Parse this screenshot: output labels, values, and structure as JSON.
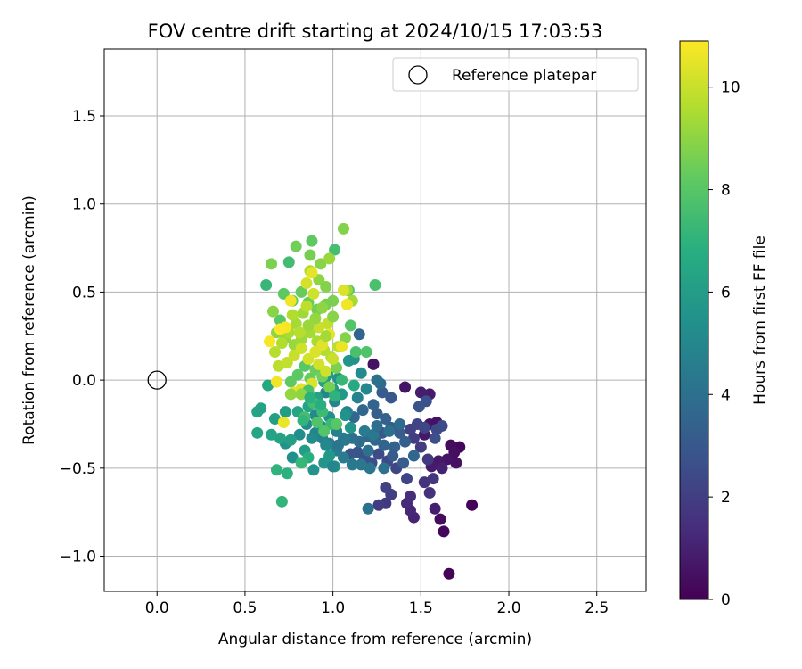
{
  "chart_data": {
    "type": "scatter",
    "title": "FOV centre drift starting at 2024/10/15 17:03:53",
    "xlabel": "Angular distance from reference (arcmin)",
    "ylabel": "Rotation from reference (arcmin)",
    "xlim": [
      -0.3,
      2.78
    ],
    "ylim": [
      -1.2,
      1.88
    ],
    "xticks": [
      "0.0",
      "0.5",
      "1.0",
      "1.5",
      "2.0",
      "2.5"
    ],
    "yticks": [
      "−1.0",
      "−0.5",
      "0.0",
      "0.5",
      "1.0",
      "1.5"
    ],
    "grid": true,
    "legend": {
      "position": "top-right",
      "entries": [
        "Reference platepar"
      ]
    },
    "reference_point": {
      "x": 0.0,
      "y": 0.0,
      "name": "Reference platepar"
    },
    "colorbar": {
      "label": "Hours from first FF file",
      "range": [
        0,
        10.9
      ],
      "ticks": [
        "0",
        "2",
        "4",
        "6",
        "8",
        "10"
      ],
      "colormap": "viridis"
    },
    "points": [
      {
        "x": 1.66,
        "y": -1.1,
        "c": 0.1
      },
      {
        "x": 1.79,
        "y": -0.71,
        "c": 0.1
      },
      {
        "x": 1.63,
        "y": -0.86,
        "c": 0.2
      },
      {
        "x": 1.61,
        "y": -0.79,
        "c": 0.3
      },
      {
        "x": 1.72,
        "y": -0.38,
        "c": 0.2
      },
      {
        "x": 1.67,
        "y": -0.37,
        "c": 0.3
      },
      {
        "x": 1.69,
        "y": -0.41,
        "c": 0.4
      },
      {
        "x": 1.7,
        "y": -0.47,
        "c": 0.5
      },
      {
        "x": 1.65,
        "y": -0.45,
        "c": 0.6
      },
      {
        "x": 1.6,
        "y": -0.46,
        "c": 0.7
      },
      {
        "x": 1.56,
        "y": -0.49,
        "c": 0.8
      },
      {
        "x": 1.58,
        "y": -0.73,
        "c": 0.9
      },
      {
        "x": 1.62,
        "y": -0.5,
        "c": 1.0
      },
      {
        "x": 1.55,
        "y": -0.08,
        "c": 0.8
      },
      {
        "x": 1.5,
        "y": -0.07,
        "c": 0.9
      },
      {
        "x": 1.52,
        "y": -0.31,
        "c": 0.7
      },
      {
        "x": 1.55,
        "y": -0.25,
        "c": 0.6
      },
      {
        "x": 1.59,
        "y": -0.24,
        "c": 0.5
      },
      {
        "x": 1.41,
        "y": -0.04,
        "c": 0.6
      },
      {
        "x": 1.23,
        "y": 0.09,
        "c": 0.5
      },
      {
        "x": 1.46,
        "y": -0.78,
        "c": 1.1
      },
      {
        "x": 1.44,
        "y": -0.74,
        "c": 1.2
      },
      {
        "x": 1.42,
        "y": -0.7,
        "c": 1.3
      },
      {
        "x": 1.44,
        "y": -0.66,
        "c": 1.4
      },
      {
        "x": 1.55,
        "y": -0.64,
        "c": 1.5
      },
      {
        "x": 1.52,
        "y": -0.58,
        "c": 1.6
      },
      {
        "x": 1.57,
        "y": -0.56,
        "c": 1.7
      },
      {
        "x": 1.54,
        "y": -0.45,
        "c": 1.8
      },
      {
        "x": 1.5,
        "y": -0.38,
        "c": 1.9
      },
      {
        "x": 1.46,
        "y": -0.33,
        "c": 2.0
      },
      {
        "x": 1.44,
        "y": -0.28,
        "c": 2.1
      },
      {
        "x": 1.48,
        "y": -0.25,
        "c": 2.2
      },
      {
        "x": 1.52,
        "y": -0.27,
        "c": 2.3
      },
      {
        "x": 1.59,
        "y": -0.28,
        "c": 2.4
      },
      {
        "x": 1.62,
        "y": -0.26,
        "c": 2.5
      },
      {
        "x": 1.58,
        "y": -0.33,
        "c": 2.6
      },
      {
        "x": 1.53,
        "y": -0.12,
        "c": 2.7
      },
      {
        "x": 1.49,
        "y": -0.15,
        "c": 2.8
      },
      {
        "x": 1.3,
        "y": -0.7,
        "c": 1.8
      },
      {
        "x": 1.26,
        "y": -0.71,
        "c": 1.9
      },
      {
        "x": 1.33,
        "y": -0.65,
        "c": 2.0
      },
      {
        "x": 1.3,
        "y": -0.61,
        "c": 2.1
      },
      {
        "x": 1.42,
        "y": -0.56,
        "c": 2.2
      },
      {
        "x": 1.36,
        "y": -0.5,
        "c": 2.3
      },
      {
        "x": 1.31,
        "y": -0.46,
        "c": 2.4
      },
      {
        "x": 1.26,
        "y": -0.42,
        "c": 2.5
      },
      {
        "x": 1.22,
        "y": -0.47,
        "c": 2.6
      },
      {
        "x": 1.18,
        "y": -0.44,
        "c": 2.7
      },
      {
        "x": 1.14,
        "y": -0.41,
        "c": 2.8
      },
      {
        "x": 1.1,
        "y": -0.42,
        "c": 2.9
      },
      {
        "x": 1.28,
        "y": -0.3,
        "c": 3.0
      },
      {
        "x": 1.33,
        "y": -0.27,
        "c": 3.1
      },
      {
        "x": 1.38,
        "y": -0.3,
        "c": 3.2
      },
      {
        "x": 1.41,
        "y": -0.35,
        "c": 3.3
      },
      {
        "x": 1.35,
        "y": -0.38,
        "c": 3.4
      },
      {
        "x": 1.29,
        "y": -0.37,
        "c": 3.5
      },
      {
        "x": 1.24,
        "y": -0.34,
        "c": 3.6
      },
      {
        "x": 1.2,
        "y": -0.32,
        "c": 3.7
      },
      {
        "x": 1.15,
        "y": -0.35,
        "c": 3.8
      },
      {
        "x": 1.11,
        "y": -0.33,
        "c": 3.9
      },
      {
        "x": 1.25,
        "y": -0.19,
        "c": 3.3
      },
      {
        "x": 1.3,
        "y": -0.22,
        "c": 3.4
      },
      {
        "x": 1.33,
        "y": -0.1,
        "c": 3.0
      },
      {
        "x": 1.28,
        "y": -0.07,
        "c": 3.1
      },
      {
        "x": 1.23,
        "y": -0.14,
        "c": 3.5
      },
      {
        "x": 1.17,
        "y": -0.17,
        "c": 3.6
      },
      {
        "x": 1.12,
        "y": -0.21,
        "c": 3.7
      },
      {
        "x": 1.27,
        "y": -0.02,
        "c": 3.8
      },
      {
        "x": 1.15,
        "y": 0.26,
        "c": 3.5
      },
      {
        "x": 1.2,
        "y": -0.73,
        "c": 4.0
      },
      {
        "x": 1.29,
        "y": -0.5,
        "c": 4.1
      },
      {
        "x": 1.21,
        "y": -0.5,
        "c": 4.2
      },
      {
        "x": 1.16,
        "y": -0.48,
        "c": 4.3
      },
      {
        "x": 1.11,
        "y": -0.48,
        "c": 4.4
      },
      {
        "x": 1.06,
        "y": -0.44,
        "c": 4.5
      },
      {
        "x": 1.02,
        "y": -0.4,
        "c": 4.6
      },
      {
        "x": 0.98,
        "y": -0.36,
        "c": 4.7
      },
      {
        "x": 0.94,
        "y": -0.33,
        "c": 4.8
      },
      {
        "x": 0.9,
        "y": -0.3,
        "c": 4.9
      },
      {
        "x": 1.06,
        "y": -0.33,
        "c": 4.6
      },
      {
        "x": 1.02,
        "y": -0.29,
        "c": 4.7
      },
      {
        "x": 1.08,
        "y": -0.18,
        "c": 4.8
      },
      {
        "x": 1.01,
        "y": -0.12,
        "c": 4.9
      },
      {
        "x": 0.96,
        "y": -0.07,
        "c": 5.0
      },
      {
        "x": 0.9,
        "y": -0.2,
        "c": 5.1
      },
      {
        "x": 0.85,
        "y": -0.25,
        "c": 5.2
      },
      {
        "x": 0.81,
        "y": -0.31,
        "c": 5.3
      },
      {
        "x": 0.77,
        "y": -0.44,
        "c": 5.4
      },
      {
        "x": 0.73,
        "y": -0.36,
        "c": 5.5
      },
      {
        "x": 0.89,
        "y": -0.51,
        "c": 5.6
      },
      {
        "x": 0.95,
        "y": -0.47,
        "c": 5.7
      },
      {
        "x": 0.98,
        "y": -0.43,
        "c": 5.8
      },
      {
        "x": 1.01,
        "y": -0.49,
        "c": 5.9
      },
      {
        "x": 0.84,
        "y": -0.4,
        "c": 6.0
      },
      {
        "x": 0.76,
        "y": -0.34,
        "c": 6.1
      },
      {
        "x": 0.7,
        "y": -0.33,
        "c": 6.2
      },
      {
        "x": 0.65,
        "y": -0.31,
        "c": 6.3
      },
      {
        "x": 0.57,
        "y": -0.3,
        "c": 6.4
      },
      {
        "x": 0.57,
        "y": -0.18,
        "c": 6.3
      },
      {
        "x": 0.59,
        "y": -0.16,
        "c": 6.2
      },
      {
        "x": 0.67,
        "y": -0.22,
        "c": 6.1
      },
      {
        "x": 0.73,
        "y": -0.18,
        "c": 6.0
      },
      {
        "x": 0.63,
        "y": -0.03,
        "c": 6.5
      },
      {
        "x": 0.8,
        "y": -0.18,
        "c": 6.4
      },
      {
        "x": 0.86,
        "y": -0.15,
        "c": 6.3
      },
      {
        "x": 0.91,
        "y": -0.1,
        "c": 6.2
      },
      {
        "x": 0.95,
        "y": -0.01,
        "c": 6.1
      },
      {
        "x": 0.97,
        "y": 0.03,
        "c": 6.0
      },
      {
        "x": 1.0,
        "y": -0.05,
        "c": 5.9
      },
      {
        "x": 1.05,
        "y": -0.08,
        "c": 5.8
      },
      {
        "x": 1.09,
        "y": 0.11,
        "c": 5.7
      },
      {
        "x": 1.12,
        "y": 0.12,
        "c": 5.6
      },
      {
        "x": 1.03,
        "y": 0.01,
        "c": 5.5
      },
      {
        "x": 0.98,
        "y": -0.21,
        "c": 5.4
      },
      {
        "x": 0.93,
        "y": -0.26,
        "c": 5.3
      },
      {
        "x": 0.88,
        "y": -0.33,
        "c": 5.2
      },
      {
        "x": 0.96,
        "y": -0.37,
        "c": 5.1
      },
      {
        "x": 1.0,
        "y": -0.49,
        "c": 5.0
      },
      {
        "x": 0.86,
        "y": -0.44,
        "c": 6.8
      },
      {
        "x": 0.74,
        "y": -0.53,
        "c": 6.9
      },
      {
        "x": 0.68,
        "y": -0.51,
        "c": 7.0
      },
      {
        "x": 0.71,
        "y": -0.69,
        "c": 7.1
      },
      {
        "x": 0.82,
        "y": -0.47,
        "c": 7.2
      },
      {
        "x": 0.99,
        "y": -0.25,
        "c": 7.3
      },
      {
        "x": 0.94,
        "y": -0.18,
        "c": 7.4
      },
      {
        "x": 0.89,
        "y": -0.13,
        "c": 7.5
      },
      {
        "x": 0.84,
        "y": -0.21,
        "c": 7.6
      },
      {
        "x": 1.13,
        "y": 0.16,
        "c": 7.7
      },
      {
        "x": 1.19,
        "y": 0.16,
        "c": 7.8
      },
      {
        "x": 1.1,
        "y": 0.31,
        "c": 7.9
      },
      {
        "x": 1.24,
        "y": 0.54,
        "c": 7.7
      },
      {
        "x": 1.09,
        "y": 0.51,
        "c": 7.8
      },
      {
        "x": 1.01,
        "y": 0.74,
        "c": 7.6
      },
      {
        "x": 0.62,
        "y": 0.54,
        "c": 7.2
      },
      {
        "x": 0.75,
        "y": 0.67,
        "c": 7.5
      },
      {
        "x": 0.88,
        "y": 0.79,
        "c": 8.2
      },
      {
        "x": 0.79,
        "y": 0.76,
        "c": 8.5
      },
      {
        "x": 0.65,
        "y": 0.66,
        "c": 8.7
      },
      {
        "x": 1.06,
        "y": 0.86,
        "c": 8.8
      },
      {
        "x": 0.87,
        "y": 0.71,
        "c": 8.6
      },
      {
        "x": 0.93,
        "y": 0.66,
        "c": 8.9
      },
      {
        "x": 0.98,
        "y": 0.69,
        "c": 9.2
      },
      {
        "x": 0.87,
        "y": 0.62,
        "c": 9.5
      },
      {
        "x": 0.92,
        "y": 0.57,
        "c": 9.0
      },
      {
        "x": 0.96,
        "y": 0.53,
        "c": 8.8
      },
      {
        "x": 1.08,
        "y": 0.51,
        "c": 9.3
      },
      {
        "x": 1.11,
        "y": 0.45,
        "c": 9.4
      },
      {
        "x": 1.0,
        "y": 0.45,
        "c": 8.7
      },
      {
        "x": 0.96,
        "y": 0.43,
        "c": 8.6
      },
      {
        "x": 0.91,
        "y": 0.4,
        "c": 8.5
      },
      {
        "x": 0.86,
        "y": 0.44,
        "c": 8.4
      },
      {
        "x": 0.82,
        "y": 0.5,
        "c": 8.3
      },
      {
        "x": 0.77,
        "y": 0.45,
        "c": 8.2
      },
      {
        "x": 0.72,
        "y": 0.49,
        "c": 8.1
      },
      {
        "x": 0.7,
        "y": 0.34,
        "c": 8.0
      },
      {
        "x": 0.66,
        "y": 0.39,
        "c": 8.9
      },
      {
        "x": 0.68,
        "y": 0.27,
        "c": 9.0
      },
      {
        "x": 0.73,
        "y": 0.24,
        "c": 9.1
      },
      {
        "x": 0.78,
        "y": 0.2,
        "c": 9.2
      },
      {
        "x": 0.82,
        "y": 0.23,
        "c": 9.3
      },
      {
        "x": 0.87,
        "y": 0.27,
        "c": 9.4
      },
      {
        "x": 0.91,
        "y": 0.22,
        "c": 9.5
      },
      {
        "x": 0.95,
        "y": 0.17,
        "c": 9.6
      },
      {
        "x": 0.99,
        "y": 0.13,
        "c": 9.7
      },
      {
        "x": 1.03,
        "y": 0.19,
        "c": 9.8
      },
      {
        "x": 0.97,
        "y": 0.32,
        "c": 9.9
      },
      {
        "x": 0.92,
        "y": 0.3,
        "c": 10.0
      },
      {
        "x": 0.89,
        "y": 0.49,
        "c": 10.1
      },
      {
        "x": 0.85,
        "y": 0.55,
        "c": 10.2
      },
      {
        "x": 1.06,
        "y": 0.51,
        "c": 10.3
      },
      {
        "x": 0.84,
        "y": 0.08,
        "c": 8.0
      },
      {
        "x": 0.8,
        "y": 0.03,
        "c": 8.1
      },
      {
        "x": 0.76,
        "y": -0.01,
        "c": 8.2
      },
      {
        "x": 0.87,
        "y": 0.01,
        "c": 8.3
      },
      {
        "x": 0.9,
        "y": 0.06,
        "c": 8.4
      },
      {
        "x": 0.94,
        "y": 0.02,
        "c": 8.5
      },
      {
        "x": 0.98,
        "y": -0.04,
        "c": 8.6
      },
      {
        "x": 1.02,
        "y": 0.07,
        "c": 8.7
      },
      {
        "x": 1.07,
        "y": 0.24,
        "c": 8.8
      },
      {
        "x": 1.0,
        "y": 0.36,
        "c": 8.9
      },
      {
        "x": 0.94,
        "y": 0.41,
        "c": 9.0
      },
      {
        "x": 0.9,
        "y": 0.35,
        "c": 9.1
      },
      {
        "x": 0.86,
        "y": 0.31,
        "c": 9.2
      },
      {
        "x": 0.83,
        "y": 0.38,
        "c": 9.3
      },
      {
        "x": 0.79,
        "y": 0.32,
        "c": 9.4
      },
      {
        "x": 0.75,
        "y": 0.27,
        "c": 9.5
      },
      {
        "x": 0.71,
        "y": 0.21,
        "c": 9.6
      },
      {
        "x": 0.67,
        "y": 0.16,
        "c": 9.7
      },
      {
        "x": 0.69,
        "y": 0.08,
        "c": 9.8
      },
      {
        "x": 0.74,
        "y": 0.1,
        "c": 9.9
      },
      {
        "x": 0.78,
        "y": 0.14,
        "c": 10.0
      },
      {
        "x": 0.82,
        "y": 0.18,
        "c": 10.1
      },
      {
        "x": 0.86,
        "y": 0.12,
        "c": 10.2
      },
      {
        "x": 0.9,
        "y": 0.16,
        "c": 10.3
      },
      {
        "x": 0.94,
        "y": 0.2,
        "c": 10.4
      },
      {
        "x": 0.98,
        "y": 0.26,
        "c": 10.5
      },
      {
        "x": 1.05,
        "y": 0.19,
        "c": 10.6
      },
      {
        "x": 1.08,
        "y": 0.43,
        "c": 10.7
      },
      {
        "x": 0.64,
        "y": 0.22,
        "c": 10.8
      },
      {
        "x": 0.68,
        "y": -0.01,
        "c": 10.7
      },
      {
        "x": 0.72,
        "y": -0.24,
        "c": 10.6
      },
      {
        "x": 0.78,
        "y": -0.07,
        "c": 10.5
      },
      {
        "x": 0.82,
        "y": -0.05,
        "c": 10.4
      },
      {
        "x": 0.88,
        "y": -0.02,
        "c": 10.3
      },
      {
        "x": 0.92,
        "y": 0.09,
        "c": 10.2
      },
      {
        "x": 0.96,
        "y": 0.05,
        "c": 10.1
      },
      {
        "x": 1.0,
        "y": 0.12,
        "c": 10.0
      },
      {
        "x": 0.85,
        "y": 0.42,
        "c": 9.8
      },
      {
        "x": 0.81,
        "y": 0.27,
        "c": 9.7
      },
      {
        "x": 0.77,
        "y": 0.37,
        "c": 9.6
      },
      {
        "x": 0.73,
        "y": 0.3,
        "c": 10.8
      },
      {
        "x": 0.7,
        "y": 0.29,
        "c": 10.9
      },
      {
        "x": 0.76,
        "y": 0.45,
        "c": 10.7
      },
      {
        "x": 0.88,
        "y": 0.61,
        "c": 10.5
      },
      {
        "x": 0.96,
        "y": 0.25,
        "c": 9.4
      },
      {
        "x": 1.02,
        "y": -0.25,
        "c": 8.0
      },
      {
        "x": 0.95,
        "y": -0.29,
        "c": 7.9
      },
      {
        "x": 0.91,
        "y": -0.24,
        "c": 7.8
      },
      {
        "x": 0.86,
        "y": -0.06,
        "c": 7.7
      },
      {
        "x": 0.82,
        "y": -0.08,
        "c": 9.0
      },
      {
        "x": 0.76,
        "y": -0.08,
        "c": 9.1
      },
      {
        "x": 1.05,
        "y": 0.0,
        "c": 7.2
      },
      {
        "x": 1.01,
        "y": -0.09,
        "c": 7.0
      },
      {
        "x": 0.93,
        "y": -0.14,
        "c": 6.8
      },
      {
        "x": 0.87,
        "y": -0.1,
        "c": 6.9
      },
      {
        "x": 0.83,
        "y": -0.23,
        "c": 7.1
      },
      {
        "x": 1.1,
        "y": -0.27,
        "c": 5.7
      },
      {
        "x": 1.07,
        "y": -0.2,
        "c": 5.5
      },
      {
        "x": 1.16,
        "y": 0.04,
        "c": 5.2
      },
      {
        "x": 1.19,
        "y": -0.05,
        "c": 5.0
      },
      {
        "x": 1.12,
        "y": -0.03,
        "c": 6.6
      },
      {
        "x": 1.14,
        "y": -0.1,
        "c": 4.8
      },
      {
        "x": 1.18,
        "y": -0.29,
        "c": 4.5
      },
      {
        "x": 1.23,
        "y": -0.31,
        "c": 4.3
      },
      {
        "x": 1.32,
        "y": -0.29,
        "c": 4.0
      },
      {
        "x": 1.38,
        "y": -0.25,
        "c": 3.8
      },
      {
        "x": 1.46,
        "y": -0.43,
        "c": 3.6
      },
      {
        "x": 1.4,
        "y": -0.47,
        "c": 3.2
      },
      {
        "x": 1.34,
        "y": -0.43,
        "c": 3.1
      },
      {
        "x": 1.25,
        "y": -0.26,
        "c": 3.9
      },
      {
        "x": 1.2,
        "y": -0.4,
        "c": 4.1
      },
      {
        "x": 1.07,
        "y": -0.34,
        "c": 4.4
      },
      {
        "x": 1.03,
        "y": -0.37,
        "c": 4.2
      },
      {
        "x": 1.25,
        "y": 0.0,
        "c": 4.0
      }
    ]
  }
}
